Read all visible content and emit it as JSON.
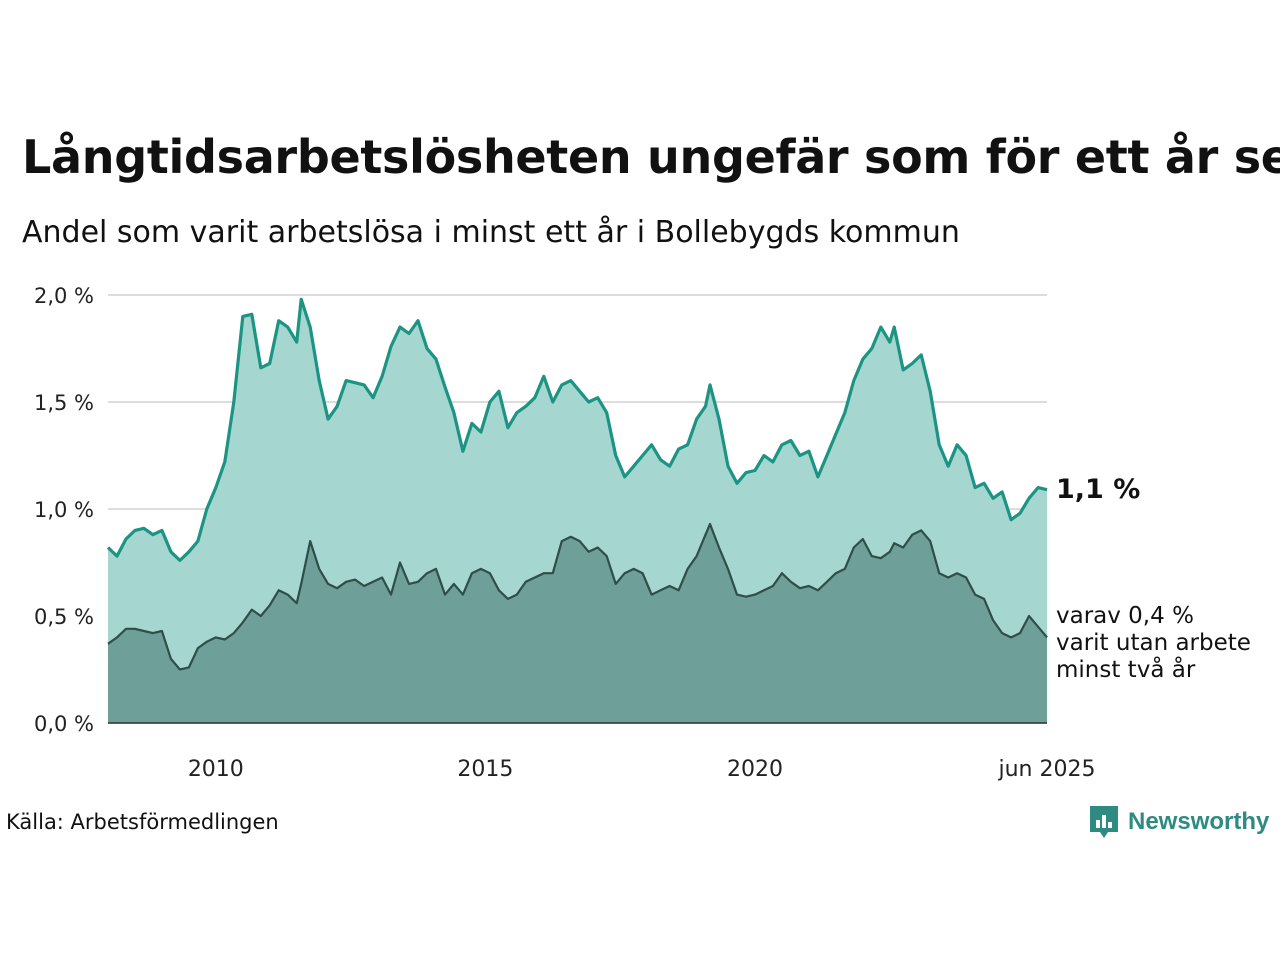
{
  "header": {
    "title": "Långtidsarbetslösheten ungefär som för ett år sen",
    "subtitle": "Andel som varit arbetslösa i minst ett år i Bollebygds kommun"
  },
  "footer": {
    "source": "Källa: Arbetsförmedlingen",
    "brand": "Newsworthy"
  },
  "annotations": {
    "end_value_label": "1,1 %",
    "sub_label_lines": [
      "varav 0,4 %",
      "varit utan arbete",
      "minst två år"
    ]
  },
  "colors": {
    "primary_fill": "#a6d6d0",
    "primary_line": "#1c9484",
    "secondary_fill": "#6e9f98",
    "secondary_line": "#2d4f47",
    "grid": "#dddddd",
    "brand": "#2e8b82"
  },
  "chart_data": {
    "type": "area",
    "title": "Långtidsarbetslösheten ungefär som för ett år sen",
    "subtitle": "Andel som varit arbetslösa i minst ett år i Bollebygds kommun",
    "x_range": [
      "2008-01",
      "2025-06"
    ],
    "ylim": [
      0,
      2
    ],
    "y_ticks": [
      "0,0 %",
      "0,5 %",
      "1,0 %",
      "1,5 %",
      "2,0 %"
    ],
    "y_tick_values": [
      0,
      0.5,
      1,
      1.5,
      2
    ],
    "x_ticks": [
      {
        "label": "2010",
        "date": "2010-01"
      },
      {
        "label": "2015",
        "date": "2015-01"
      },
      {
        "label": "2020",
        "date": "2020-01"
      },
      {
        "label": "jun 2025",
        "date": "2025-06"
      }
    ],
    "grid": "horizontal",
    "series": [
      {
        "points": [
          [
            "2008-01",
            0.82
          ],
          [
            "2008-03",
            0.78
          ],
          [
            "2008-05",
            0.86
          ],
          [
            "2008-07",
            0.9
          ],
          [
            "2008-09",
            0.91
          ],
          [
            "2008-11",
            0.88
          ],
          [
            "2009-01",
            0.9
          ],
          [
            "2009-03",
            0.8
          ],
          [
            "2009-05",
            0.76
          ],
          [
            "2009-07",
            0.8
          ],
          [
            "2009-09",
            0.85
          ],
          [
            "2009-11",
            1.0
          ],
          [
            "2010-01",
            1.1
          ],
          [
            "2010-03",
            1.22
          ],
          [
            "2010-05",
            1.5
          ],
          [
            "2010-07",
            1.9
          ],
          [
            "2010-09",
            1.91
          ],
          [
            "2010-11",
            1.66
          ],
          [
            "2011-01",
            1.68
          ],
          [
            "2011-03",
            1.88
          ],
          [
            "2011-05",
            1.85
          ],
          [
            "2011-07",
            1.78
          ],
          [
            "2011-08",
            1.98
          ],
          [
            "2011-10",
            1.85
          ],
          [
            "2011-12",
            1.6
          ],
          [
            "2012-02",
            1.42
          ],
          [
            "2012-04",
            1.48
          ],
          [
            "2012-06",
            1.6
          ],
          [
            "2012-08",
            1.59
          ],
          [
            "2012-10",
            1.58
          ],
          [
            "2012-12",
            1.52
          ],
          [
            "2013-02",
            1.62
          ],
          [
            "2013-04",
            1.76
          ],
          [
            "2013-06",
            1.85
          ],
          [
            "2013-08",
            1.82
          ],
          [
            "2013-10",
            1.88
          ],
          [
            "2013-12",
            1.75
          ],
          [
            "2014-02",
            1.7
          ],
          [
            "2014-04",
            1.57
          ],
          [
            "2014-06",
            1.45
          ],
          [
            "2014-08",
            1.27
          ],
          [
            "2014-10",
            1.4
          ],
          [
            "2014-12",
            1.36
          ],
          [
            "2015-02",
            1.5
          ],
          [
            "2015-04",
            1.55
          ],
          [
            "2015-06",
            1.38
          ],
          [
            "2015-08",
            1.45
          ],
          [
            "2015-10",
            1.48
          ],
          [
            "2015-12",
            1.52
          ],
          [
            "2016-02",
            1.62
          ],
          [
            "2016-04",
            1.5
          ],
          [
            "2016-06",
            1.58
          ],
          [
            "2016-08",
            1.6
          ],
          [
            "2016-10",
            1.55
          ],
          [
            "2016-12",
            1.5
          ],
          [
            "2017-02",
            1.52
          ],
          [
            "2017-04",
            1.45
          ],
          [
            "2017-06",
            1.25
          ],
          [
            "2017-08",
            1.15
          ],
          [
            "2017-10",
            1.2
          ],
          [
            "2017-12",
            1.25
          ],
          [
            "2018-02",
            1.3
          ],
          [
            "2018-04",
            1.23
          ],
          [
            "2018-06",
            1.2
          ],
          [
            "2018-08",
            1.28
          ],
          [
            "2018-10",
            1.3
          ],
          [
            "2018-12",
            1.42
          ],
          [
            "2019-02",
            1.48
          ],
          [
            "2019-03",
            1.58
          ],
          [
            "2019-05",
            1.42
          ],
          [
            "2019-07",
            1.2
          ],
          [
            "2019-09",
            1.12
          ],
          [
            "2019-11",
            1.17
          ],
          [
            "2020-01",
            1.18
          ],
          [
            "2020-03",
            1.25
          ],
          [
            "2020-05",
            1.22
          ],
          [
            "2020-07",
            1.3
          ],
          [
            "2020-09",
            1.32
          ],
          [
            "2020-11",
            1.25
          ],
          [
            "2021-01",
            1.27
          ],
          [
            "2021-03",
            1.15
          ],
          [
            "2021-05",
            1.25
          ],
          [
            "2021-07",
            1.35
          ],
          [
            "2021-09",
            1.45
          ],
          [
            "2021-11",
            1.6
          ],
          [
            "2022-01",
            1.7
          ],
          [
            "2022-03",
            1.75
          ],
          [
            "2022-05",
            1.85
          ],
          [
            "2022-07",
            1.78
          ],
          [
            "2022-08",
            1.85
          ],
          [
            "2022-10",
            1.65
          ],
          [
            "2022-12",
            1.68
          ],
          [
            "2023-02",
            1.72
          ],
          [
            "2023-04",
            1.55
          ],
          [
            "2023-06",
            1.3
          ],
          [
            "2023-08",
            1.2
          ],
          [
            "2023-10",
            1.3
          ],
          [
            "2023-12",
            1.25
          ],
          [
            "2024-02",
            1.1
          ],
          [
            "2024-04",
            1.12
          ],
          [
            "2024-06",
            1.05
          ],
          [
            "2024-08",
            1.08
          ],
          [
            "2024-10",
            0.95
          ],
          [
            "2024-12",
            0.98
          ],
          [
            "2025-02",
            1.05
          ],
          [
            "2025-04",
            1.1
          ],
          [
            "2025-06",
            1.09
          ]
        ]
      },
      {
        "points": [
          [
            "2008-01",
            0.37
          ],
          [
            "2008-03",
            0.4
          ],
          [
            "2008-05",
            0.44
          ],
          [
            "2008-07",
            0.44
          ],
          [
            "2008-09",
            0.43
          ],
          [
            "2008-11",
            0.42
          ],
          [
            "2009-01",
            0.43
          ],
          [
            "2009-03",
            0.3
          ],
          [
            "2009-05",
            0.25
          ],
          [
            "2009-07",
            0.26
          ],
          [
            "2009-09",
            0.35
          ],
          [
            "2009-11",
            0.38
          ],
          [
            "2010-01",
            0.4
          ],
          [
            "2010-03",
            0.39
          ],
          [
            "2010-05",
            0.42
          ],
          [
            "2010-07",
            0.47
          ],
          [
            "2010-09",
            0.53
          ],
          [
            "2010-11",
            0.5
          ],
          [
            "2011-01",
            0.55
          ],
          [
            "2011-03",
            0.62
          ],
          [
            "2011-05",
            0.6
          ],
          [
            "2011-07",
            0.56
          ],
          [
            "2011-08",
            0.65
          ],
          [
            "2011-10",
            0.85
          ],
          [
            "2011-12",
            0.72
          ],
          [
            "2012-02",
            0.65
          ],
          [
            "2012-04",
            0.63
          ],
          [
            "2012-06",
            0.66
          ],
          [
            "2012-08",
            0.67
          ],
          [
            "2012-10",
            0.64
          ],
          [
            "2012-12",
            0.66
          ],
          [
            "2013-02",
            0.68
          ],
          [
            "2013-04",
            0.6
          ],
          [
            "2013-06",
            0.75
          ],
          [
            "2013-08",
            0.65
          ],
          [
            "2013-10",
            0.66
          ],
          [
            "2013-12",
            0.7
          ],
          [
            "2014-02",
            0.72
          ],
          [
            "2014-04",
            0.6
          ],
          [
            "2014-06",
            0.65
          ],
          [
            "2014-08",
            0.6
          ],
          [
            "2014-10",
            0.7
          ],
          [
            "2014-12",
            0.72
          ],
          [
            "2015-02",
            0.7
          ],
          [
            "2015-04",
            0.62
          ],
          [
            "2015-06",
            0.58
          ],
          [
            "2015-08",
            0.6
          ],
          [
            "2015-10",
            0.66
          ],
          [
            "2015-12",
            0.68
          ],
          [
            "2016-02",
            0.7
          ],
          [
            "2016-04",
            0.7
          ],
          [
            "2016-06",
            0.85
          ],
          [
            "2016-08",
            0.87
          ],
          [
            "2016-10",
            0.85
          ],
          [
            "2016-12",
            0.8
          ],
          [
            "2017-02",
            0.82
          ],
          [
            "2017-04",
            0.78
          ],
          [
            "2017-06",
            0.65
          ],
          [
            "2017-08",
            0.7
          ],
          [
            "2017-10",
            0.72
          ],
          [
            "2017-12",
            0.7
          ],
          [
            "2018-02",
            0.6
          ],
          [
            "2018-04",
            0.62
          ],
          [
            "2018-06",
            0.64
          ],
          [
            "2018-08",
            0.62
          ],
          [
            "2018-10",
            0.72
          ],
          [
            "2018-12",
            0.78
          ],
          [
            "2019-02",
            0.88
          ],
          [
            "2019-03",
            0.93
          ],
          [
            "2019-05",
            0.82
          ],
          [
            "2019-07",
            0.72
          ],
          [
            "2019-09",
            0.6
          ],
          [
            "2019-11",
            0.59
          ],
          [
            "2020-01",
            0.6
          ],
          [
            "2020-03",
            0.62
          ],
          [
            "2020-05",
            0.64
          ],
          [
            "2020-07",
            0.7
          ],
          [
            "2020-09",
            0.66
          ],
          [
            "2020-11",
            0.63
          ],
          [
            "2021-01",
            0.64
          ],
          [
            "2021-03",
            0.62
          ],
          [
            "2021-05",
            0.66
          ],
          [
            "2021-07",
            0.7
          ],
          [
            "2021-09",
            0.72
          ],
          [
            "2021-11",
            0.82
          ],
          [
            "2022-01",
            0.86
          ],
          [
            "2022-03",
            0.78
          ],
          [
            "2022-05",
            0.77
          ],
          [
            "2022-07",
            0.8
          ],
          [
            "2022-08",
            0.84
          ],
          [
            "2022-10",
            0.82
          ],
          [
            "2022-12",
            0.88
          ],
          [
            "2023-02",
            0.9
          ],
          [
            "2023-04",
            0.85
          ],
          [
            "2023-06",
            0.7
          ],
          [
            "2023-08",
            0.68
          ],
          [
            "2023-10",
            0.7
          ],
          [
            "2023-12",
            0.68
          ],
          [
            "2024-02",
            0.6
          ],
          [
            "2024-04",
            0.58
          ],
          [
            "2024-06",
            0.48
          ],
          [
            "2024-08",
            0.42
          ],
          [
            "2024-10",
            0.4
          ],
          [
            "2024-12",
            0.42
          ],
          [
            "2025-02",
            0.5
          ],
          [
            "2025-04",
            0.45
          ],
          [
            "2025-06",
            0.4
          ]
        ]
      }
    ]
  }
}
